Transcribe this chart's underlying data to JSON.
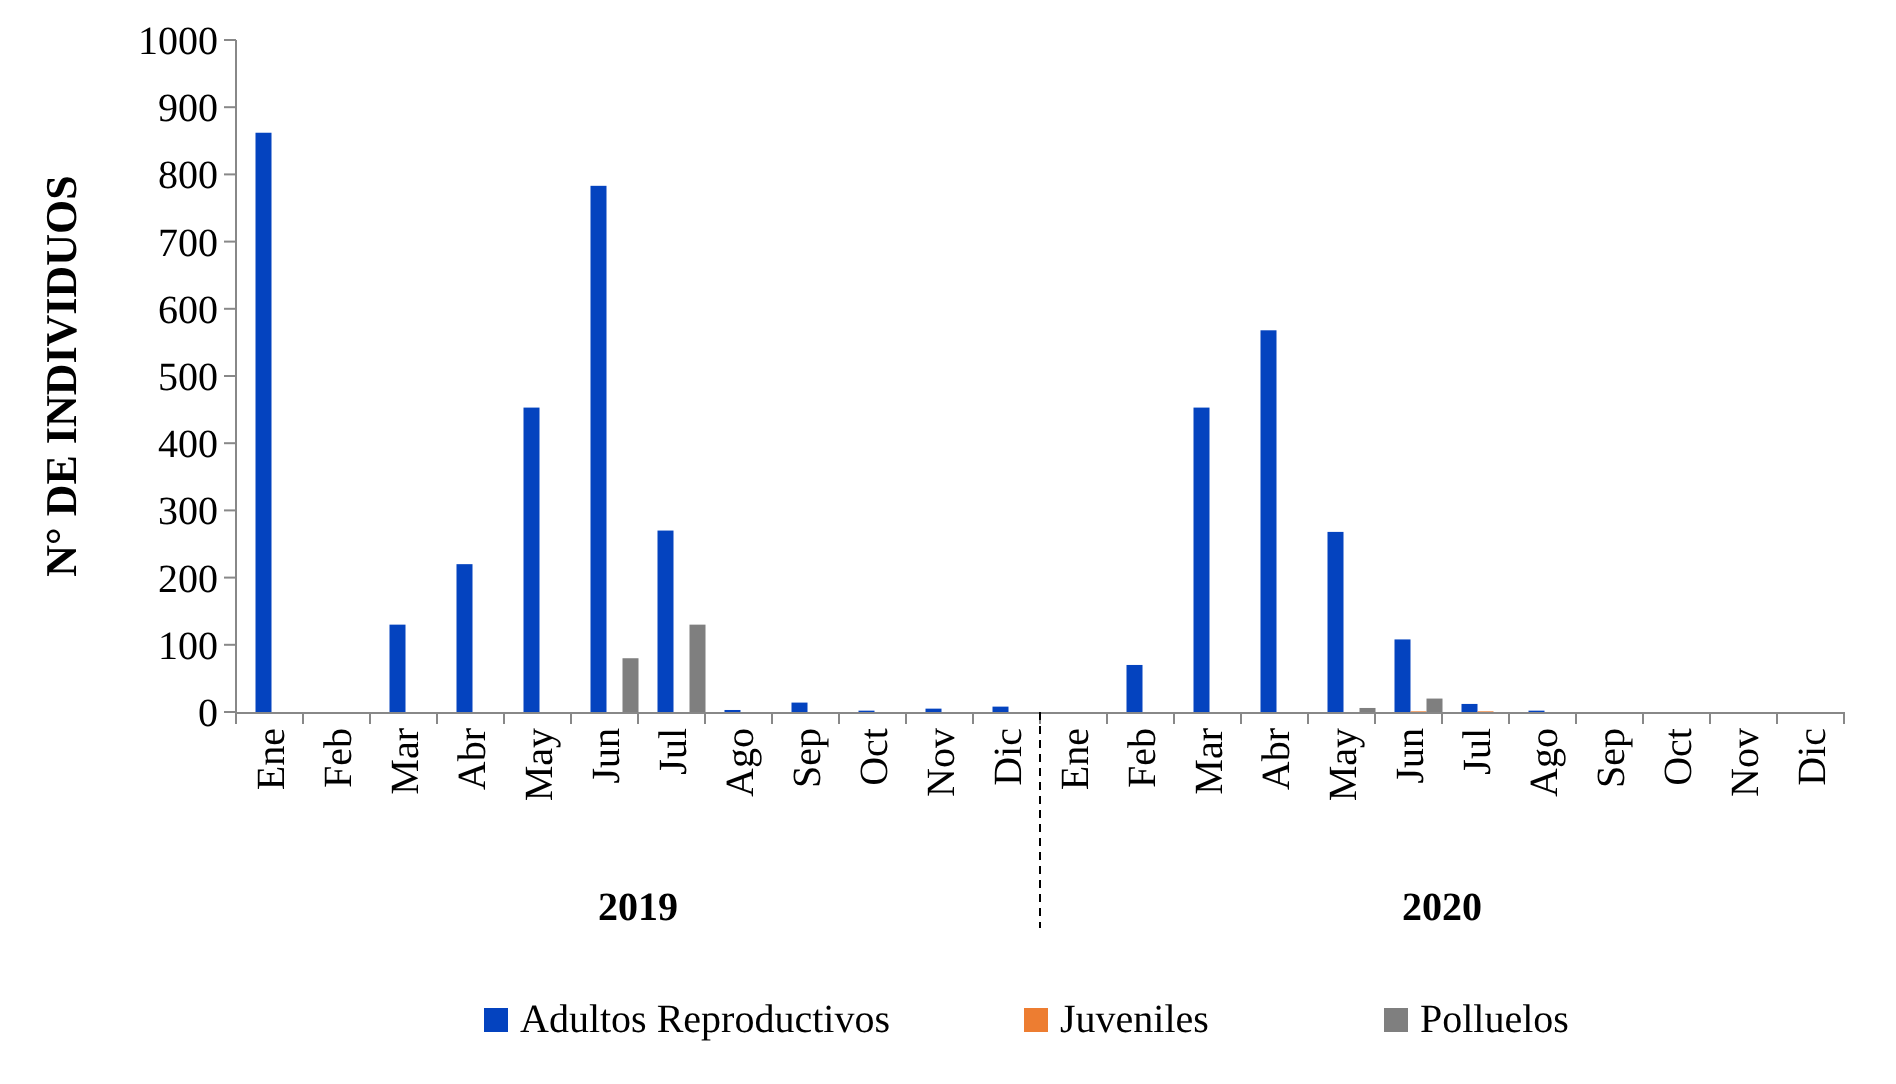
{
  "chart_data": {
    "type": "bar",
    "ylabel": "N° DE INDIVIDUOS",
    "categories": [
      "Ene",
      "Feb",
      "Mar",
      "Abr",
      "May",
      "Jun",
      "Jul",
      "Ago",
      "Sep",
      "Oct",
      "Nov",
      "Dic",
      "Ene",
      "Feb",
      "Mar",
      "Abr",
      "May",
      "Jun",
      "Jul",
      "Ago",
      "Sep",
      "Oct",
      "Nov",
      "Dic"
    ],
    "series": [
      {
        "name": "Adultos Reproductivos",
        "color": "#0443bf",
        "values": [
          862,
          0,
          130,
          220,
          453,
          783,
          270,
          3,
          14,
          2,
          5,
          8,
          0,
          70,
          453,
          568,
          268,
          108,
          12,
          2,
          0,
          0,
          0,
          0
        ]
      },
      {
        "name": "Juveniles",
        "color": "#ed7d31",
        "values": [
          0,
          0,
          0,
          0,
          0,
          0,
          0,
          0,
          0,
          0,
          0,
          0,
          0,
          0,
          0,
          0,
          0,
          1,
          1,
          0,
          0,
          0,
          0,
          0
        ]
      },
      {
        "name": "Polluelos",
        "color": "#7f7f7f",
        "values": [
          0,
          0,
          0,
          0,
          0,
          80,
          130,
          0,
          0,
          0,
          0,
          0,
          0,
          0,
          0,
          0,
          6,
          20,
          0,
          0,
          0,
          0,
          0,
          0
        ]
      }
    ],
    "ylim": [
      0,
      1000
    ],
    "yticks": [
      0,
      100,
      200,
      300,
      400,
      500,
      600,
      700,
      800,
      900,
      1000
    ],
    "annotations": [
      "2019",
      "2020"
    ],
    "grid": false,
    "legend": "bottom"
  }
}
